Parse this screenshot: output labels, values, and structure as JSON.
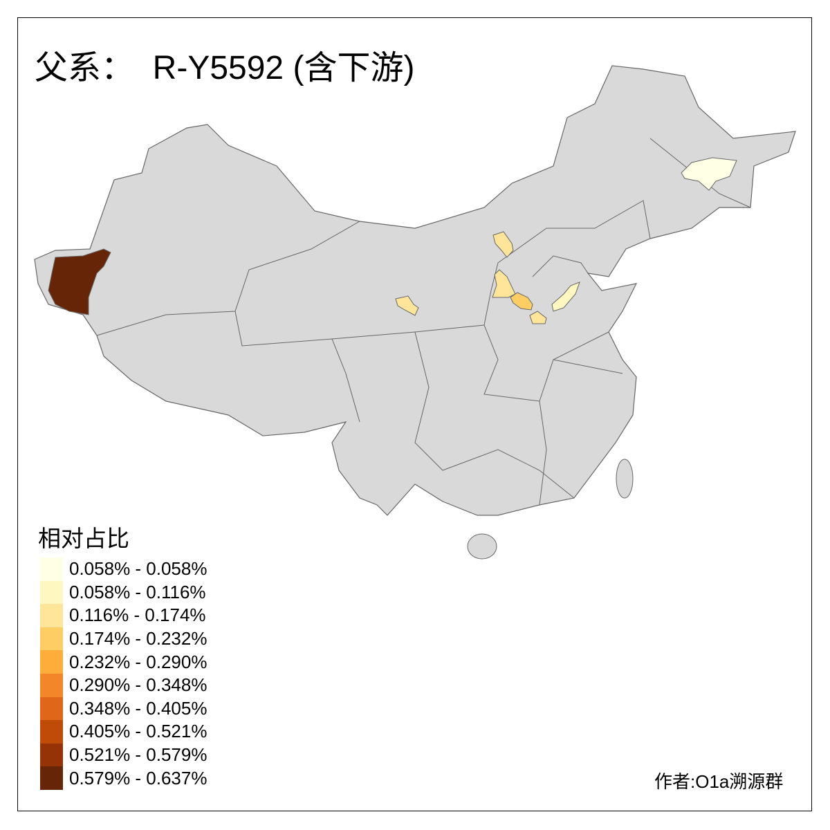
{
  "title": "父系：  R-Y5592 (含下游)",
  "legend": {
    "title": "相对占比",
    "classes": [
      {
        "label": "0.058% - 0.058%",
        "color": "#FFFFE5"
      },
      {
        "label": "0.058% - 0.116%",
        "color": "#FFF7C0"
      },
      {
        "label": "0.116% - 0.174%",
        "color": "#FEE59A"
      },
      {
        "label": "0.174% - 0.232%",
        "color": "#FECE65"
      },
      {
        "label": "0.232% - 0.290%",
        "color": "#FEAC3A"
      },
      {
        "label": "0.290% - 0.348%",
        "color": "#F4862A"
      },
      {
        "label": "0.348% - 0.405%",
        "color": "#E0661A"
      },
      {
        "label": "0.405% - 0.521%",
        "color": "#C04A08"
      },
      {
        "label": "0.521% - 0.579%",
        "color": "#953306"
      },
      {
        "label": "0.579% - 0.637%",
        "color": "#662506"
      }
    ]
  },
  "map": {
    "base_color": "#D9D9D9",
    "border_color": "#666666",
    "highlighted_regions": [
      {
        "class": 9
      },
      {
        "class": 0
      },
      {
        "class": 2
      },
      {
        "class": 2
      },
      {
        "class": 2
      },
      {
        "class": 3
      },
      {
        "class": 2
      },
      {
        "class": 1
      }
    ]
  },
  "author": "作者:O1a溯源群"
}
